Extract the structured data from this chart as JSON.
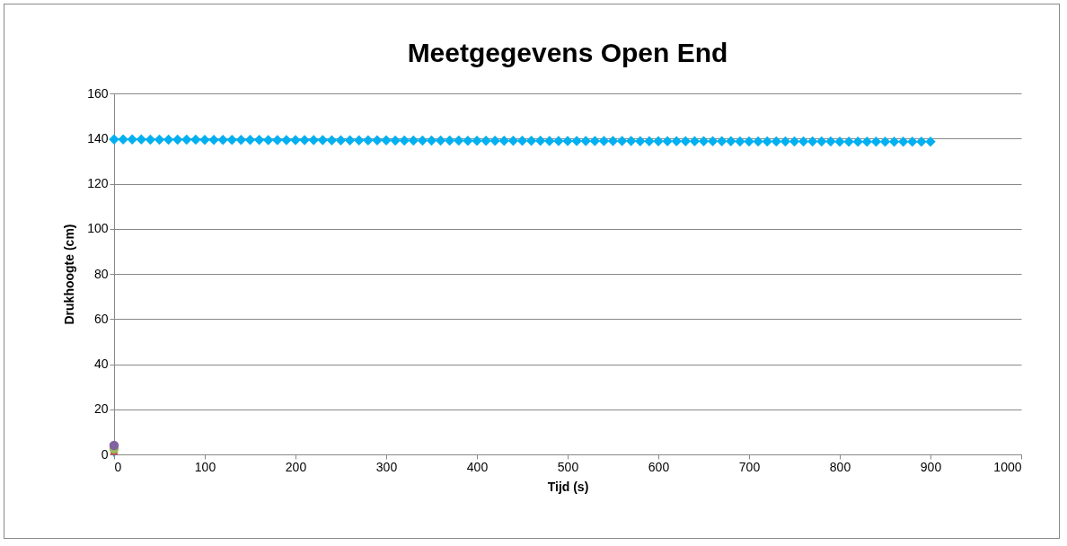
{
  "chart_data": {
    "type": "scatter",
    "title": "Meetgegevens Open End",
    "xlabel": "Tijd (s)",
    "ylabel": "Drukhoogte (cm)",
    "xlim": [
      0,
      1000
    ],
    "xticks": [
      0,
      100,
      200,
      300,
      400,
      500,
      600,
      700,
      800,
      900,
      1000
    ],
    "ylim": [
      0,
      160
    ],
    "yticks": [
      0,
      20,
      40,
      60,
      80,
      100,
      120,
      140,
      160
    ],
    "grid": "y",
    "series": [
      {
        "color": "#00b0f0",
        "marker": "diamond",
        "x": [
          0,
          10,
          20,
          30,
          40,
          50,
          60,
          70,
          80,
          90,
          100,
          110,
          120,
          130,
          140,
          150,
          160,
          170,
          180,
          190,
          200,
          210,
          220,
          230,
          240,
          250,
          260,
          270,
          280,
          290,
          300,
          310,
          320,
          330,
          340,
          350,
          360,
          370,
          380,
          390,
          400,
          410,
          420,
          430,
          440,
          450,
          460,
          470,
          480,
          490,
          500,
          510,
          520,
          530,
          540,
          550,
          560,
          570,
          580,
          590,
          600,
          610,
          620,
          630,
          640,
          650,
          660,
          670,
          680,
          690,
          700,
          710,
          720,
          730,
          740,
          750,
          760,
          770,
          780,
          790,
          800,
          810,
          820,
          830,
          840,
          850,
          860,
          870,
          880,
          890,
          900
        ],
        "values": [
          139.6,
          139.6,
          139.6,
          139.6,
          139.5,
          139.5,
          139.5,
          139.5,
          139.5,
          139.5,
          139.4,
          139.4,
          139.4,
          139.4,
          139.4,
          139.4,
          139.4,
          139.3,
          139.3,
          139.3,
          139.3,
          139.3,
          139.3,
          139.3,
          139.2,
          139.2,
          139.2,
          139.2,
          139.2,
          139.2,
          139.2,
          139.1,
          139.1,
          139.1,
          139.1,
          139.1,
          139.1,
          139.1,
          139.1,
          139.0,
          139.0,
          139.0,
          139.0,
          139.0,
          139.0,
          139.0,
          139.0,
          139.0,
          138.9,
          138.9,
          138.9,
          138.9,
          138.9,
          138.9,
          138.9,
          138.9,
          138.9,
          138.9,
          138.8,
          138.8,
          138.8,
          138.8,
          138.8,
          138.8,
          138.8,
          138.8,
          138.8,
          138.8,
          138.8,
          138.7,
          138.7,
          138.7,
          138.7,
          138.7,
          138.7,
          138.7,
          138.7,
          138.7,
          138.7,
          138.7,
          138.6,
          138.6,
          138.6,
          138.6,
          138.6,
          138.6,
          138.6,
          138.6,
          138.6,
          138.6,
          138.6
        ]
      },
      {
        "color": "#00b0f0",
        "marker": "triangle",
        "x": [
          0
        ],
        "values": [
          0
        ]
      },
      {
        "color": "#c0504d",
        "marker": "square",
        "x": [
          0
        ],
        "values": [
          1.2
        ]
      },
      {
        "color": "#9bbb59",
        "marker": "circle",
        "x": [
          0
        ],
        "values": [
          2.5
        ]
      },
      {
        "color": "#8064a2",
        "marker": "circle",
        "x": [
          0
        ],
        "values": [
          4
        ]
      }
    ]
  }
}
